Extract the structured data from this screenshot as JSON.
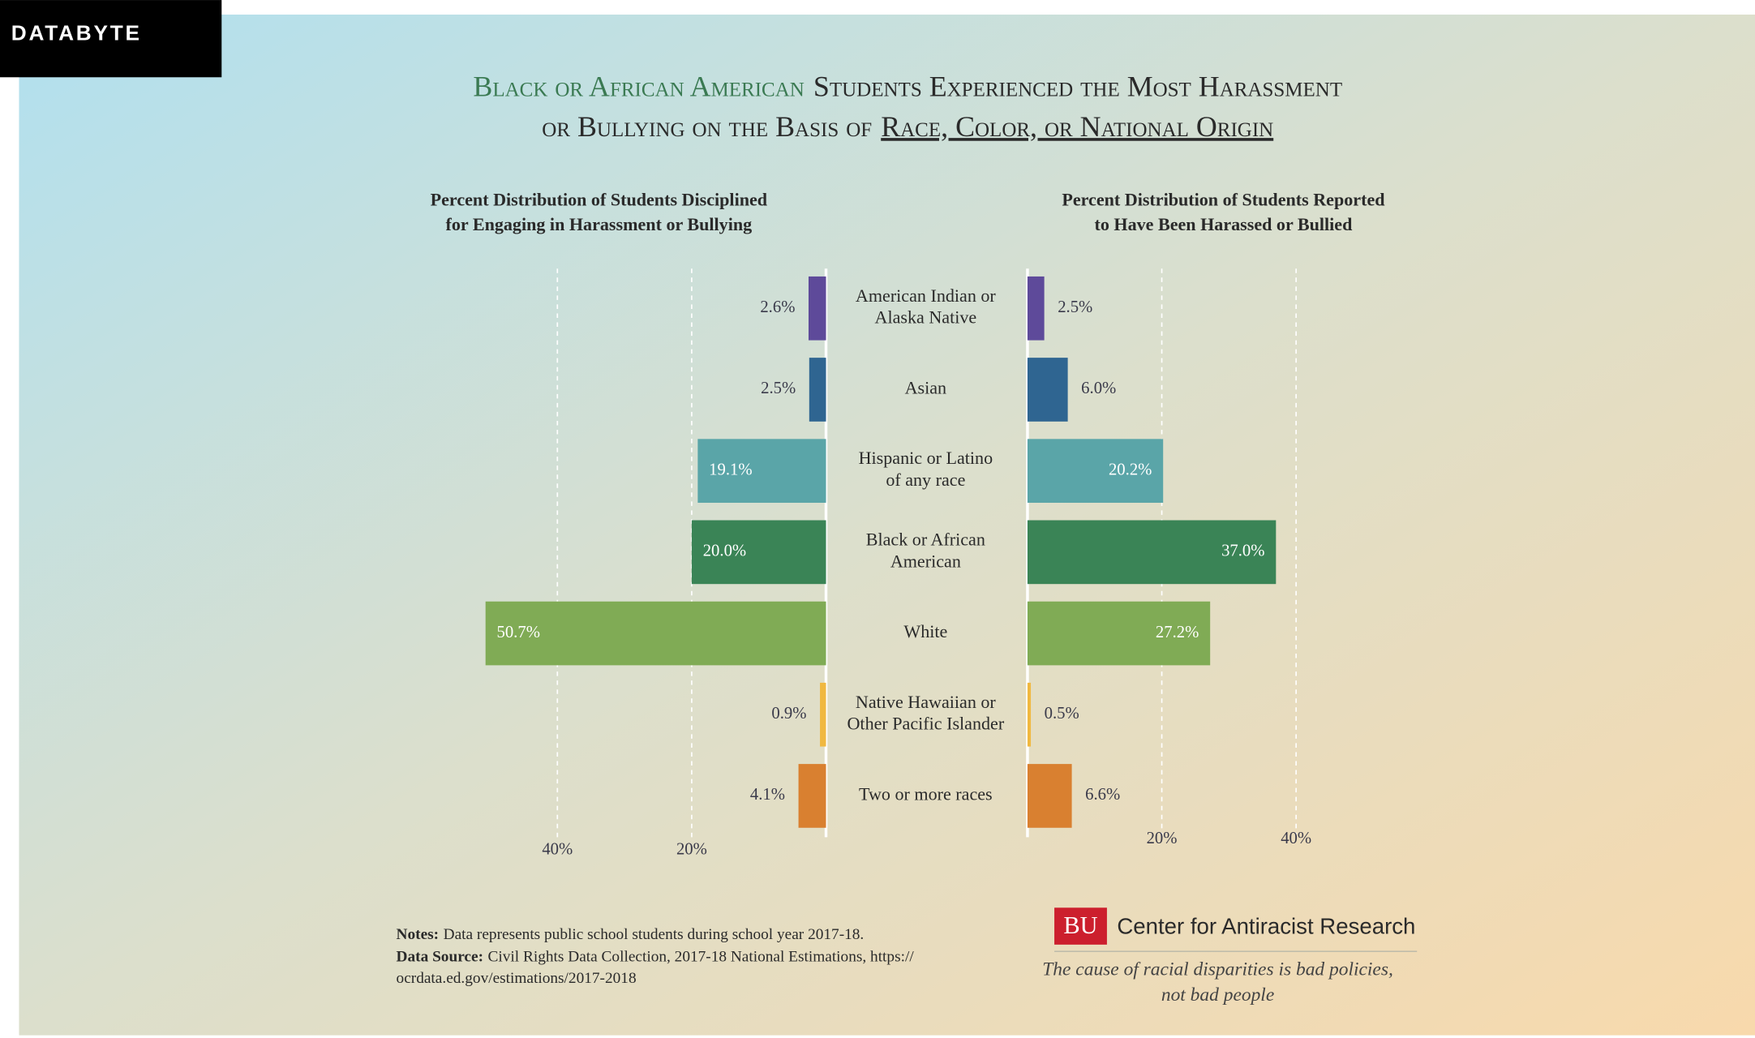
{
  "header": "DATABYTE",
  "chart_data": {
    "type": "butterfly-bar",
    "title": {
      "highlight": "Black or African American",
      "line1": "Students Experienced the Most Harassment",
      "line2": "or Bullying on the Basis of",
      "underlined": "Race, Color, or National Origin"
    },
    "categories": [
      "American Indian or\nAlaska Native",
      "Asian",
      "Hispanic or Latino\nof any race",
      "Black or African\nAmerican",
      "White",
      "Native Hawaiian or\nOther Pacific Islander",
      "Two or more races"
    ],
    "colors": [
      "#5e4a9a",
      "#2f6591",
      "#5aa5a8",
      "#3a8456",
      "#80ab55",
      "#f0b840",
      "#d98030"
    ],
    "series": [
      {
        "name": "Percent Distribution of Students Disciplined\nfor Engaging in Harassment or Bullying",
        "values": [
          2.6,
          2.5,
          19.1,
          20.0,
          50.7,
          0.9,
          4.1
        ],
        "value_labels": [
          "2.6%",
          "2.5%",
          "19.1%",
          "20.0%",
          "50.7%",
          "0.9%",
          "4.1%"
        ],
        "xlim": [
          0,
          50
        ],
        "xticks": [
          {
            "value": 40,
            "label": "40%"
          },
          {
            "value": 20,
            "label": "20%"
          }
        ]
      },
      {
        "name": "Percent Distribution of Students Reported\nto Have Been Harassed or Bullied",
        "values": [
          2.5,
          6.0,
          20.2,
          37.0,
          27.2,
          0.5,
          6.6
        ],
        "value_labels": [
          "2.5%",
          "6.0%",
          "20.2%",
          "37.0%",
          "27.2%",
          "0.5%",
          "6.6%"
        ],
        "xlim": [
          0,
          50
        ],
        "xticks": [
          {
            "value": 20,
            "label": "20%"
          },
          {
            "value": 40,
            "label": "40%"
          }
        ]
      }
    ],
    "grid": true
  },
  "notes": {
    "notes_label": "Notes:",
    "notes_text": "Data represents public school students during school year 2017-18.",
    "source_label": "Data Source:",
    "source_text": "Civil Rights Data Collection, 2017-18 National Estimations, https://",
    "source_text_2": "ocrdata.ed.gov/estimations/2017-2018"
  },
  "brand": {
    "logo": "BU",
    "name": "Center for Antiracist Research",
    "tagline": "The cause of racial disparities is bad policies,\nnot bad people"
  }
}
